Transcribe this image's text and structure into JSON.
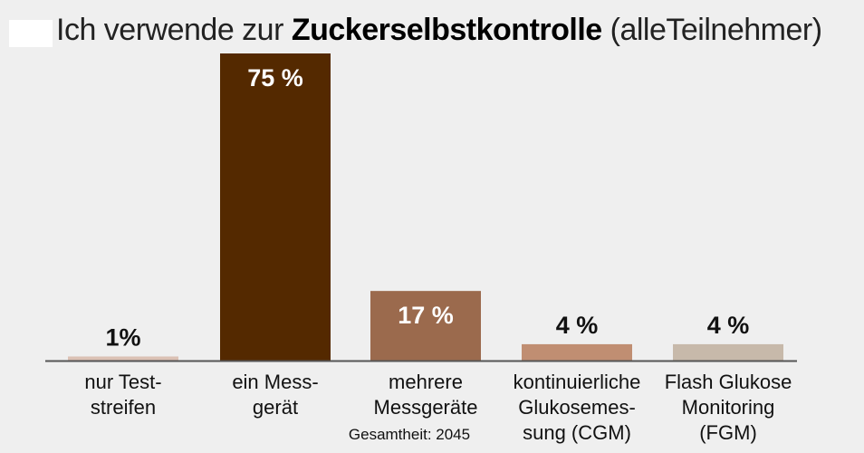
{
  "title": {
    "prefix": "Ich verwende zur ",
    "emphasis": "Zuckerselbstkontrolle",
    "suffix": " (alleTeilnehmer)"
  },
  "note": "Gesamtheit: 2045",
  "colors": {
    "background": "#efefef",
    "axis": "#555555",
    "value_label_dark": "#111111",
    "value_label_light": "#ffffff"
  },
  "chart_data": {
    "type": "bar",
    "categories": [
      "nur Test-\nstreifen",
      "ein Mess-\ngerät",
      "mehrere\nMessgeräte",
      "kontinuierliche\nGlukosemes-\nsung (CGM)",
      "Flash Glukose\nMonitoring\n(FGM)"
    ],
    "values": [
      1,
      75,
      17,
      4,
      4
    ],
    "value_labels": [
      "1%",
      "75 %",
      "17 %",
      "4 %",
      "4 %"
    ],
    "bar_colors": [
      "#dbc1b4",
      "#542900",
      "#9b6a4d",
      "#c08e72",
      "#c7b9aa"
    ],
    "title": "Ich verwende zur Zuckerselbstkontrolle (alleTeilnehmer)",
    "xlabel": "",
    "ylabel": "",
    "ylim": [
      0,
      75
    ],
    "grid": false,
    "legend": "none"
  }
}
